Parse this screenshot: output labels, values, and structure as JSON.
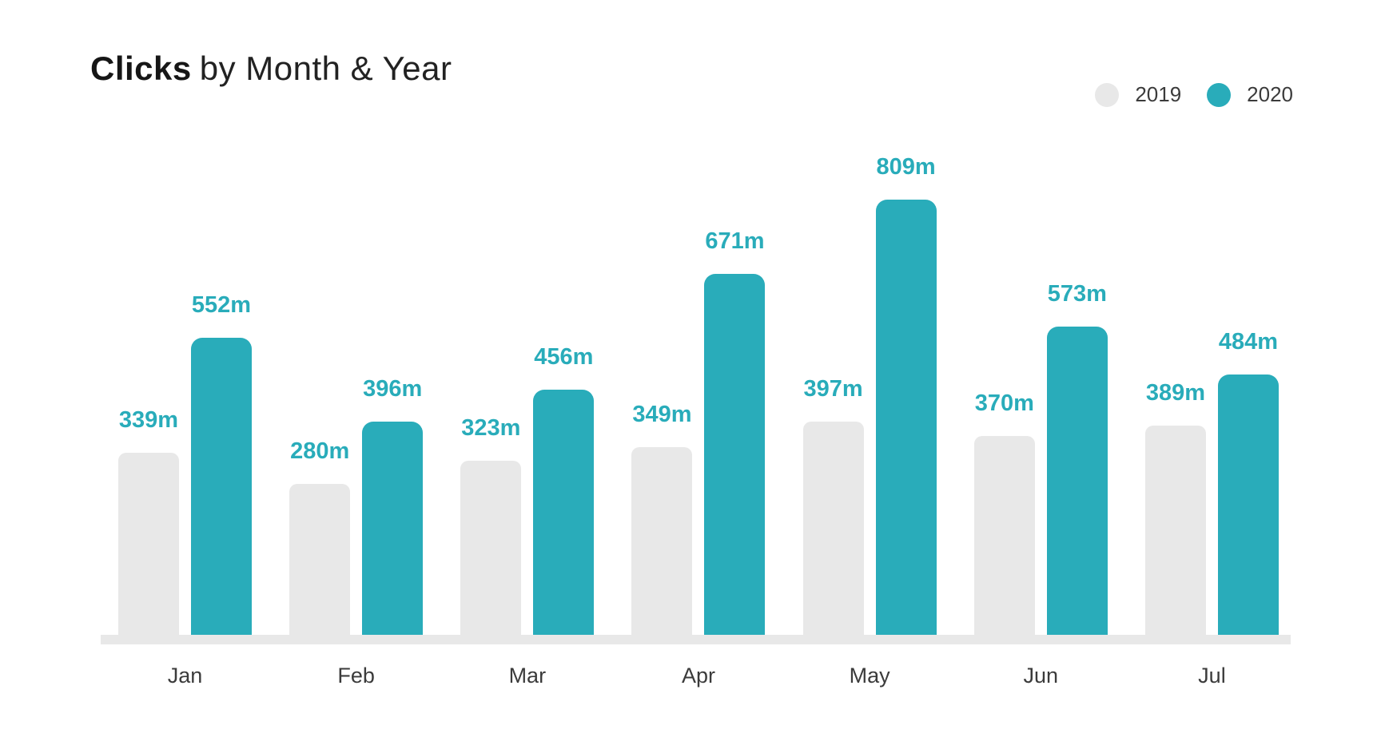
{
  "title": {
    "bold": "Clicks",
    "rest": "by Month & Year"
  },
  "legend": [
    {
      "label": "2019",
      "color": "#e8e8e8"
    },
    {
      "label": "2020",
      "color": "#29acba"
    }
  ],
  "chart_data": {
    "type": "bar",
    "title": "Clicks by Month & Year",
    "categories": [
      "Jan",
      "Feb",
      "Mar",
      "Apr",
      "May",
      "Jun",
      "Jul"
    ],
    "series": [
      {
        "name": "2019",
        "color": "#e8e8e8",
        "values": [
          339,
          280,
          323,
          349,
          397,
          370,
          389
        ],
        "value_labels": [
          "339m",
          "280m",
          "323m",
          "349m",
          "397m",
          "370m",
          "389m"
        ]
      },
      {
        "name": "2020",
        "color": "#29acba",
        "values": [
          552,
          396,
          456,
          671,
          809,
          573,
          484
        ],
        "value_labels": [
          "552m",
          "396m",
          "456m",
          "671m",
          "809m",
          "573m",
          "484m"
        ]
      }
    ],
    "value_suffix": "m",
    "value_label_color": "#29acba",
    "xlabel": "",
    "ylabel": "",
    "ylim": [
      0,
      809
    ],
    "grid": false,
    "legend_position": "top-right"
  }
}
